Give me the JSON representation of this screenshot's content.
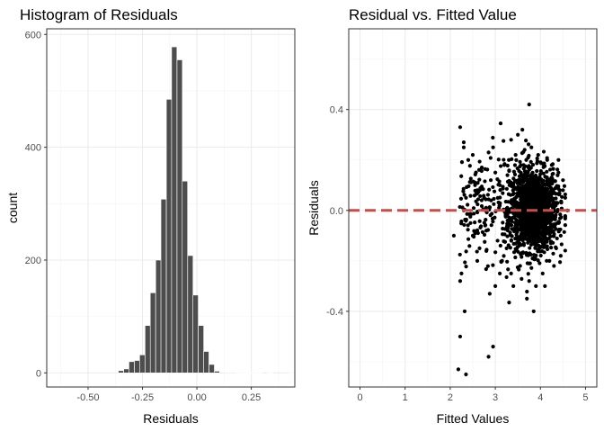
{
  "chart_data": [
    {
      "type": "bar",
      "title": "Histogram of Residuals",
      "xlabel": "Residuals",
      "ylabel": "count",
      "xlim": [
        -0.69,
        0.45
      ],
      "ylim": [
        -25,
        610
      ],
      "xticks": [
        -0.5,
        -0.25,
        0.0,
        0.25
      ],
      "xtick_labels": [
        "-0.50",
        "-0.25",
        "0.00",
        "0.25"
      ],
      "yticks": [
        0,
        200,
        400,
        600
      ],
      "ytick_labels": [
        "0",
        "200",
        "400",
        "600"
      ],
      "bin_width": 0.0245,
      "bin_centers": [
        -0.667,
        -0.618,
        -0.545,
        -0.349,
        -0.324,
        -0.3,
        -0.275,
        -0.251,
        -0.226,
        -0.202,
        -0.177,
        -0.153,
        -0.128,
        -0.104,
        -0.079,
        -0.055,
        -0.03,
        -0.006,
        0.019,
        0.043,
        0.068,
        0.092,
        0.117,
        0.141,
        0.166,
        0.19,
        0.215,
        0.239,
        0.264,
        0.288,
        0.337,
        0.435
      ],
      "values": [
        1,
        1,
        1,
        4,
        7,
        20,
        22,
        32,
        84,
        142,
        200,
        308,
        485,
        578,
        555,
        340,
        208,
        138,
        84,
        38,
        15,
        3,
        1,
        1,
        1,
        0,
        0,
        0,
        0,
        0,
        0,
        0
      ],
      "bar_color": "#4d4d4d",
      "grid": true
    },
    {
      "type": "scatter",
      "title": "Residual vs. Fitted Value",
      "xlabel": "Fitted Values",
      "ylabel": "Residuals",
      "xlim": [
        -0.25,
        5.25
      ],
      "ylim": [
        -0.7,
        0.72
      ],
      "xticks": [
        0,
        1,
        2,
        3,
        4,
        5
      ],
      "xtick_labels": [
        "0",
        "1",
        "2",
        "3",
        "4",
        "5"
      ],
      "yticks": [
        -0.4,
        0.0,
        0.4
      ],
      "ytick_labels": [
        "-0.4",
        "0.0",
        "0.4"
      ],
      "reference_line": {
        "y": 0,
        "style": "dashed",
        "color": "#c0504d"
      },
      "point_color": "#000000",
      "grid": true,
      "points": [
        [
          2.08,
          -0.1
        ],
        [
          2.18,
          -0.63
        ],
        [
          2.22,
          -0.5
        ],
        [
          2.35,
          -0.65
        ],
        [
          2.32,
          -0.4
        ],
        [
          2.22,
          -0.28
        ],
        [
          2.25,
          -0.25
        ],
        [
          2.85,
          -0.58
        ],
        [
          2.95,
          -0.54
        ],
        [
          3.75,
          0.42
        ],
        [
          2.22,
          0.33
        ],
        [
          2.3,
          0.27
        ],
        [
          2.3,
          0.25
        ],
        [
          2.4,
          0.2
        ],
        [
          2.5,
          0.22
        ],
        [
          2.7,
          0.17
        ],
        [
          2.85,
          0.23
        ],
        [
          2.95,
          0.25
        ],
        [
          3.35,
          0.28
        ],
        [
          3.5,
          0.3
        ],
        [
          3.6,
          0.32
        ],
        [
          3.85,
          -0.4
        ],
        [
          3.4,
          -0.3
        ],
        [
          3.7,
          -0.35
        ],
        [
          3.0,
          -0.3
        ],
        [
          2.6,
          -0.2
        ],
        [
          2.5,
          -0.1
        ],
        [
          3.1,
          -0.25
        ],
        [
          4.1,
          -0.3
        ],
        [
          4.3,
          -0.22
        ],
        [
          4.45,
          -0.18
        ],
        [
          4.5,
          0.12
        ],
        [
          4.55,
          0.05
        ],
        [
          4.6,
          0.0
        ],
        [
          4.4,
          0.2
        ],
        [
          2.3,
          0.0
        ],
        [
          2.35,
          0.05
        ],
        [
          2.45,
          -0.05
        ],
        [
          2.55,
          0.1
        ],
        [
          2.6,
          0.08
        ],
        [
          2.65,
          -0.15
        ],
        [
          2.75,
          0.05
        ],
        [
          2.8,
          -0.08
        ],
        [
          2.9,
          0.12
        ],
        [
          3.0,
          0.15
        ],
        [
          3.05,
          -0.12
        ],
        [
          3.1,
          0.1
        ],
        [
          3.15,
          -0.2
        ],
        [
          3.2,
          0.18
        ],
        [
          3.25,
          -0.15
        ],
        [
          3.3,
          0.2
        ],
        [
          3.35,
          -0.25
        ],
        [
          3.45,
          0.22
        ],
        [
          3.55,
          -0.22
        ],
        [
          3.65,
          0.24
        ],
        [
          3.75,
          -0.28
        ],
        [
          3.8,
          0.25
        ],
        [
          3.9,
          -0.3
        ],
        [
          3.95,
          0.22
        ],
        [
          4.05,
          -0.25
        ],
        [
          4.15,
          0.2
        ],
        [
          4.2,
          -0.2
        ],
        [
          4.25,
          0.18
        ],
        [
          4.35,
          -0.15
        ],
        [
          4.4,
          0.15
        ],
        [
          4.45,
          -0.1
        ],
        [
          4.5,
          0.08
        ],
        [
          4.2,
          0.1
        ],
        [
          3.9,
          0.05
        ],
        [
          3.6,
          -0.05
        ]
      ]
    }
  ]
}
